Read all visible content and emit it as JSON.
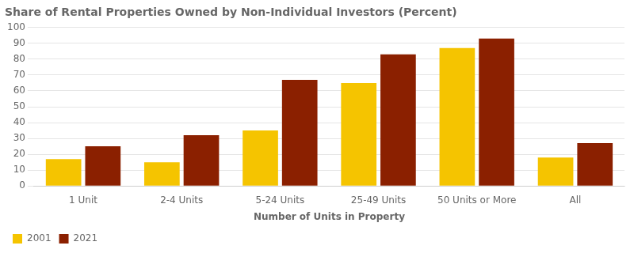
{
  "chart_data": {
    "type": "bar",
    "title": "Share of Rental Properties Owned by Non-Individual Investors (Percent)",
    "categories": [
      "1 Unit",
      "2-4 Units",
      "5-24 Units",
      "25-49 Units",
      "50 Units or More",
      "All"
    ],
    "series": [
      {
        "name": "2001",
        "color": "#F5C400",
        "values": [
          17,
          15,
          35,
          65,
          87,
          18
        ]
      },
      {
        "name": "2021",
        "color": "#8B2000",
        "values": [
          25,
          32,
          67,
          83,
          93,
          27
        ]
      }
    ],
    "xlabel": "Number of Units in Property",
    "ylim": [
      0,
      100
    ],
    "yticks": [
      0,
      10,
      20,
      30,
      40,
      50,
      60,
      70,
      80,
      90,
      100
    ],
    "grid": true,
    "legend": "lower left"
  }
}
